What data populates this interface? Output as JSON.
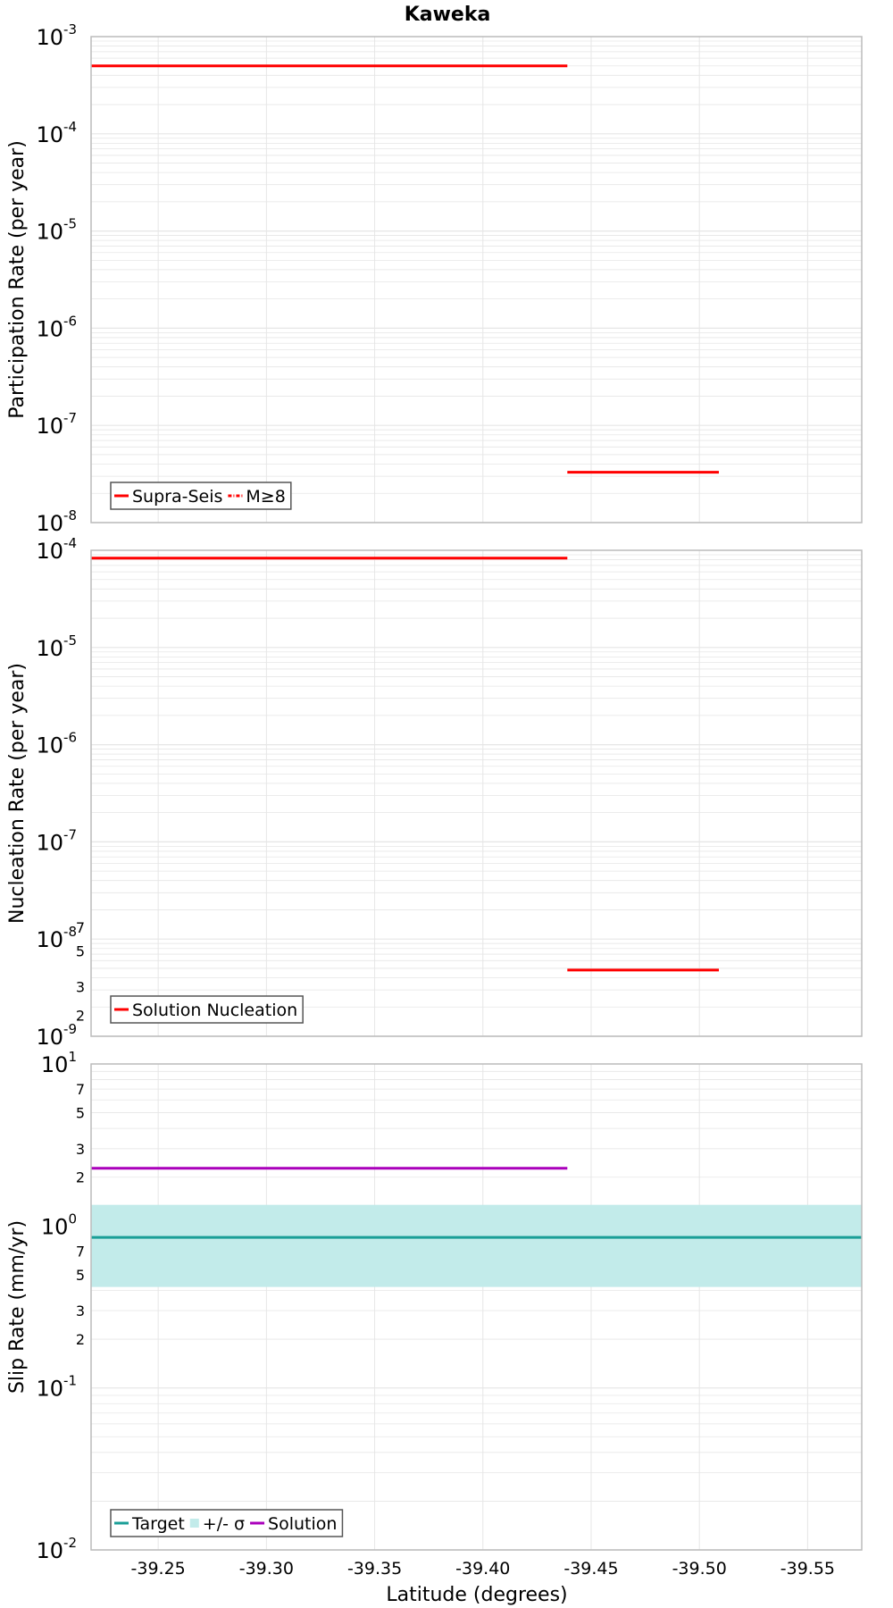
{
  "title": "Kaweka",
  "xlabel": "Latitude (degrees)",
  "colors": {
    "red": "#ff0000",
    "teal": "#1a9e97",
    "band": "#c2ebea",
    "purple": "#aa00bb",
    "grid": "#e6e6e6",
    "frame": "#bbbbbb",
    "text": "#000000"
  },
  "chart_data": [
    {
      "type": "line",
      "title": "Kaweka",
      "ylabel": "Participation Rate (per year)",
      "xlabel": "",
      "xlim": [
        -39.219,
        -39.575
      ],
      "ylim": [
        1e-08,
        0.001
      ],
      "yscale": "log",
      "grid": true,
      "legend_position": "bottom-left",
      "series": [
        {
          "name": "Supra-Seis",
          "style": "solid",
          "color": "#ff0000",
          "segments": [
            {
              "x": [
                -39.219,
                -39.439
              ],
              "y": [
                0.0005,
                0.0005
              ]
            },
            {
              "x": [
                -39.439,
                -39.509
              ],
              "y": [
                3.3e-08,
                3.3e-08
              ]
            }
          ]
        },
        {
          "name": "M≥8",
          "style": "dash-dot",
          "color": "#ff0000",
          "segments": []
        }
      ]
    },
    {
      "type": "line",
      "title": "",
      "ylabel": "Nucleation Rate (per year)",
      "xlabel": "",
      "xlim": [
        -39.219,
        -39.575
      ],
      "ylim": [
        1e-09,
        0.0001
      ],
      "yscale": "log",
      "grid": true,
      "legend_position": "bottom-left",
      "series": [
        {
          "name": "Solution Nucleation",
          "style": "solid",
          "color": "#ff0000",
          "segments": [
            {
              "x": [
                -39.219,
                -39.439
              ],
              "y": [
                8.3e-05,
                8.3e-05
              ]
            },
            {
              "x": [
                -39.439,
                -39.509
              ],
              "y": [
                4.8e-09,
                4.8e-09
              ]
            }
          ]
        }
      ]
    },
    {
      "type": "line",
      "title": "",
      "ylabel": "Slip Rate (mm/yr)",
      "xlabel": "Latitude (degrees)",
      "xlim": [
        -39.219,
        -39.575
      ],
      "ylim": [
        0.01,
        10
      ],
      "yscale": "log",
      "grid": true,
      "legend_position": "bottom-left",
      "series": [
        {
          "name": "Target",
          "style": "solid",
          "color": "#1a9e97",
          "segments": [
            {
              "x": [
                -39.219,
                -39.575
              ],
              "y": [
                0.85,
                0.85
              ]
            }
          ]
        },
        {
          "name": "+/- σ",
          "style": "band",
          "color": "#c2ebea",
          "segments": [
            {
              "x": [
                -39.219,
                -39.575
              ],
              "y_low": [
                0.42,
                0.42
              ],
              "y_high": [
                1.35,
                1.35
              ]
            }
          ]
        },
        {
          "name": "Solution",
          "style": "solid",
          "color": "#aa00bb",
          "segments": [
            {
              "x": [
                -39.219,
                -39.439
              ],
              "y": [
                2.27,
                2.27
              ]
            }
          ]
        }
      ]
    }
  ],
  "x_ticks": [
    "-39.25",
    "-39.30",
    "-39.35",
    "-39.40",
    "-39.45",
    "-39.50",
    "-39.55"
  ],
  "x_tick_values": [
    -39.25,
    -39.3,
    -39.35,
    -39.4,
    -39.45,
    -39.5,
    -39.55
  ],
  "y_ticks_p1": [
    {
      "base": "10",
      "exp": "-3"
    },
    {
      "base": "10",
      "exp": "-4"
    },
    {
      "base": "10",
      "exp": "-5"
    },
    {
      "base": "10",
      "exp": "-6"
    },
    {
      "base": "10",
      "exp": "-7"
    },
    {
      "base": "10",
      "exp": "-8"
    }
  ],
  "y_ticks_p2": [
    {
      "base": "10",
      "exp": "-4"
    },
    {
      "base": "10",
      "exp": "-5"
    },
    {
      "base": "10",
      "exp": "-6"
    },
    {
      "base": "10",
      "exp": "-7"
    },
    {
      "base": "10",
      "exp": "-8"
    },
    {
      "base": "10",
      "exp": "-9"
    }
  ],
  "y_ticks_p3_major": [
    {
      "base": "10",
      "exp": "1"
    },
    {
      "base": "10",
      "exp": "0"
    },
    {
      "base": "10",
      "exp": "-1"
    },
    {
      "base": "10",
      "exp": "-2"
    }
  ],
  "y_ticks_p3_minor": [
    "7",
    "5",
    "3",
    "2"
  ],
  "legend_p1": [
    "Supra-Seis",
    "M≥8"
  ],
  "legend_p2": [
    "Solution Nucleation"
  ],
  "legend_p3": [
    "Target",
    "+/- σ",
    "Solution"
  ]
}
